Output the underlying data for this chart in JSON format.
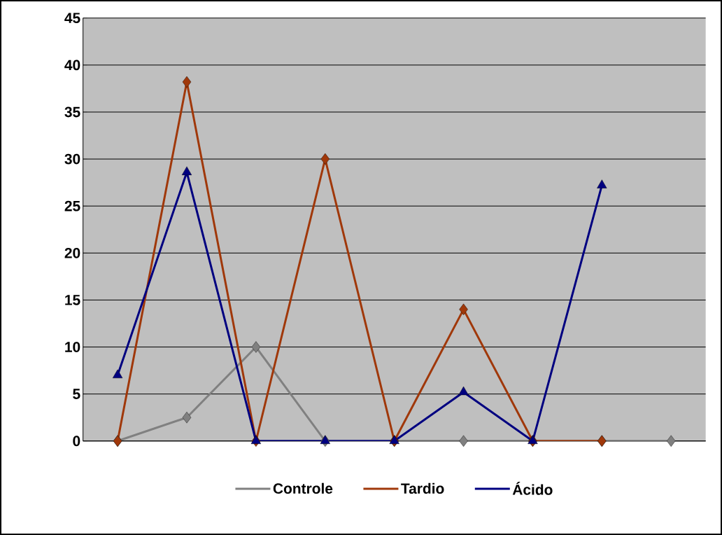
{
  "chart_data": {
    "type": "line",
    "categories": [
      null,
      null,
      null,
      null,
      null,
      null,
      null,
      null,
      null
    ],
    "series": [
      {
        "name": "Controle",
        "color": "#808080",
        "marker": "diamond",
        "values": [
          0,
          2.5,
          10,
          0,
          0,
          0,
          0,
          0,
          0
        ]
      },
      {
        "name": "Tardio",
        "color": "#a0380a",
        "marker": "diamond",
        "values": [
          0,
          38.2,
          0,
          30,
          0,
          14,
          0,
          0,
          null
        ]
      },
      {
        "name": "Ácido",
        "color": "#000080",
        "marker": "triangle",
        "values": [
          7,
          28.6,
          0,
          0,
          0,
          5.2,
          0,
          27.2,
          null
        ]
      }
    ],
    "ylim": [
      0,
      45
    ],
    "yticks": [
      0,
      5,
      10,
      15,
      20,
      25,
      30,
      35,
      40,
      45
    ],
    "grid": "y",
    "legend": "bottom",
    "tick_labels": "y",
    "line_style": "solid"
  }
}
